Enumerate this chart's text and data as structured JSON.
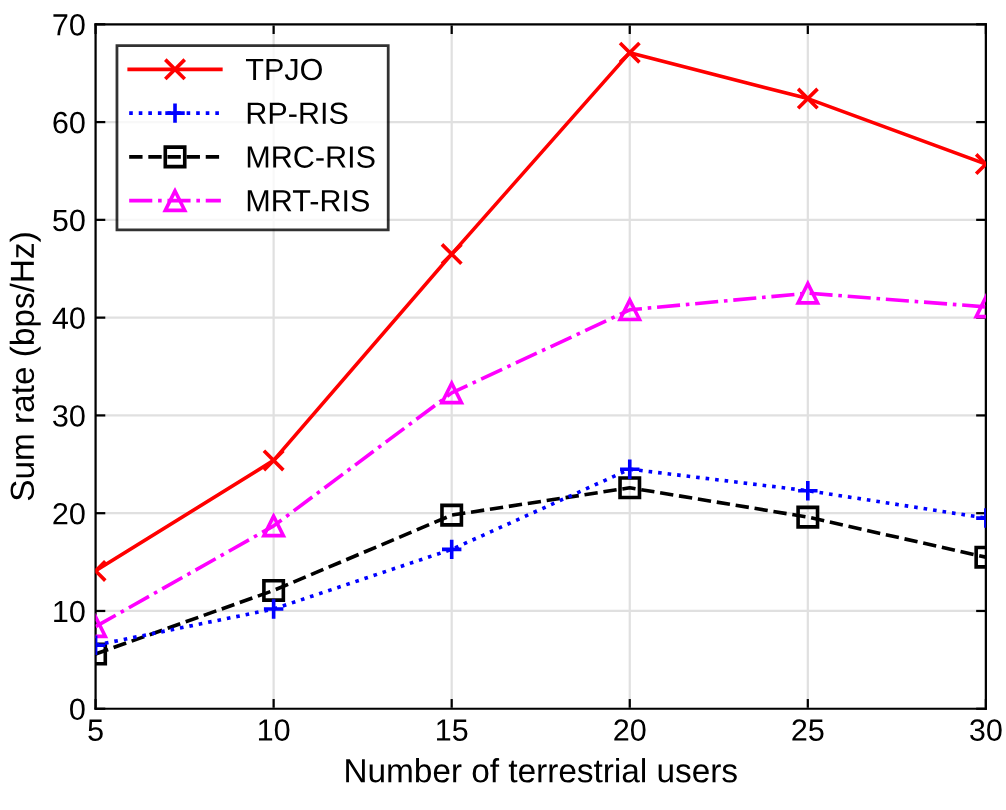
{
  "chart_data": {
    "type": "line",
    "xlabel": "Number of terrestrial users",
    "ylabel": "Sum rate (bps/Hz)",
    "x": [
      5,
      10,
      15,
      20,
      25,
      30
    ],
    "series": [
      {
        "name": "TPJO",
        "color": "#ff0000",
        "marker": "cross",
        "line_style": "solid",
        "values": [
          14.1,
          25.4,
          46.5,
          67.1,
          62.4,
          55.7
        ]
      },
      {
        "name": "RP-RIS",
        "color": "#0000ff",
        "marker": "plus",
        "line_style": "dotted",
        "values": [
          6.5,
          10.2,
          16.3,
          24.5,
          22.3,
          19.5
        ]
      },
      {
        "name": "MRC-RIS",
        "color": "#000000",
        "marker": "square",
        "line_style": "dashed",
        "values": [
          5.6,
          12.1,
          19.8,
          22.6,
          19.6,
          15.5
        ]
      },
      {
        "name": "MRT-RIS",
        "color": "#ff00ff",
        "marker": "triangle",
        "line_style": "dashdot",
        "values": [
          8.4,
          18.7,
          32.3,
          40.8,
          42.5,
          41.1
        ]
      }
    ],
    "xlim": [
      5,
      30
    ],
    "xticks": [
      5,
      10,
      15,
      20,
      25,
      30
    ],
    "ylim": [
      0,
      70
    ],
    "yticks": [
      0,
      10,
      20,
      30,
      40,
      50,
      60,
      70
    ],
    "grid": true,
    "legend": "top left"
  }
}
